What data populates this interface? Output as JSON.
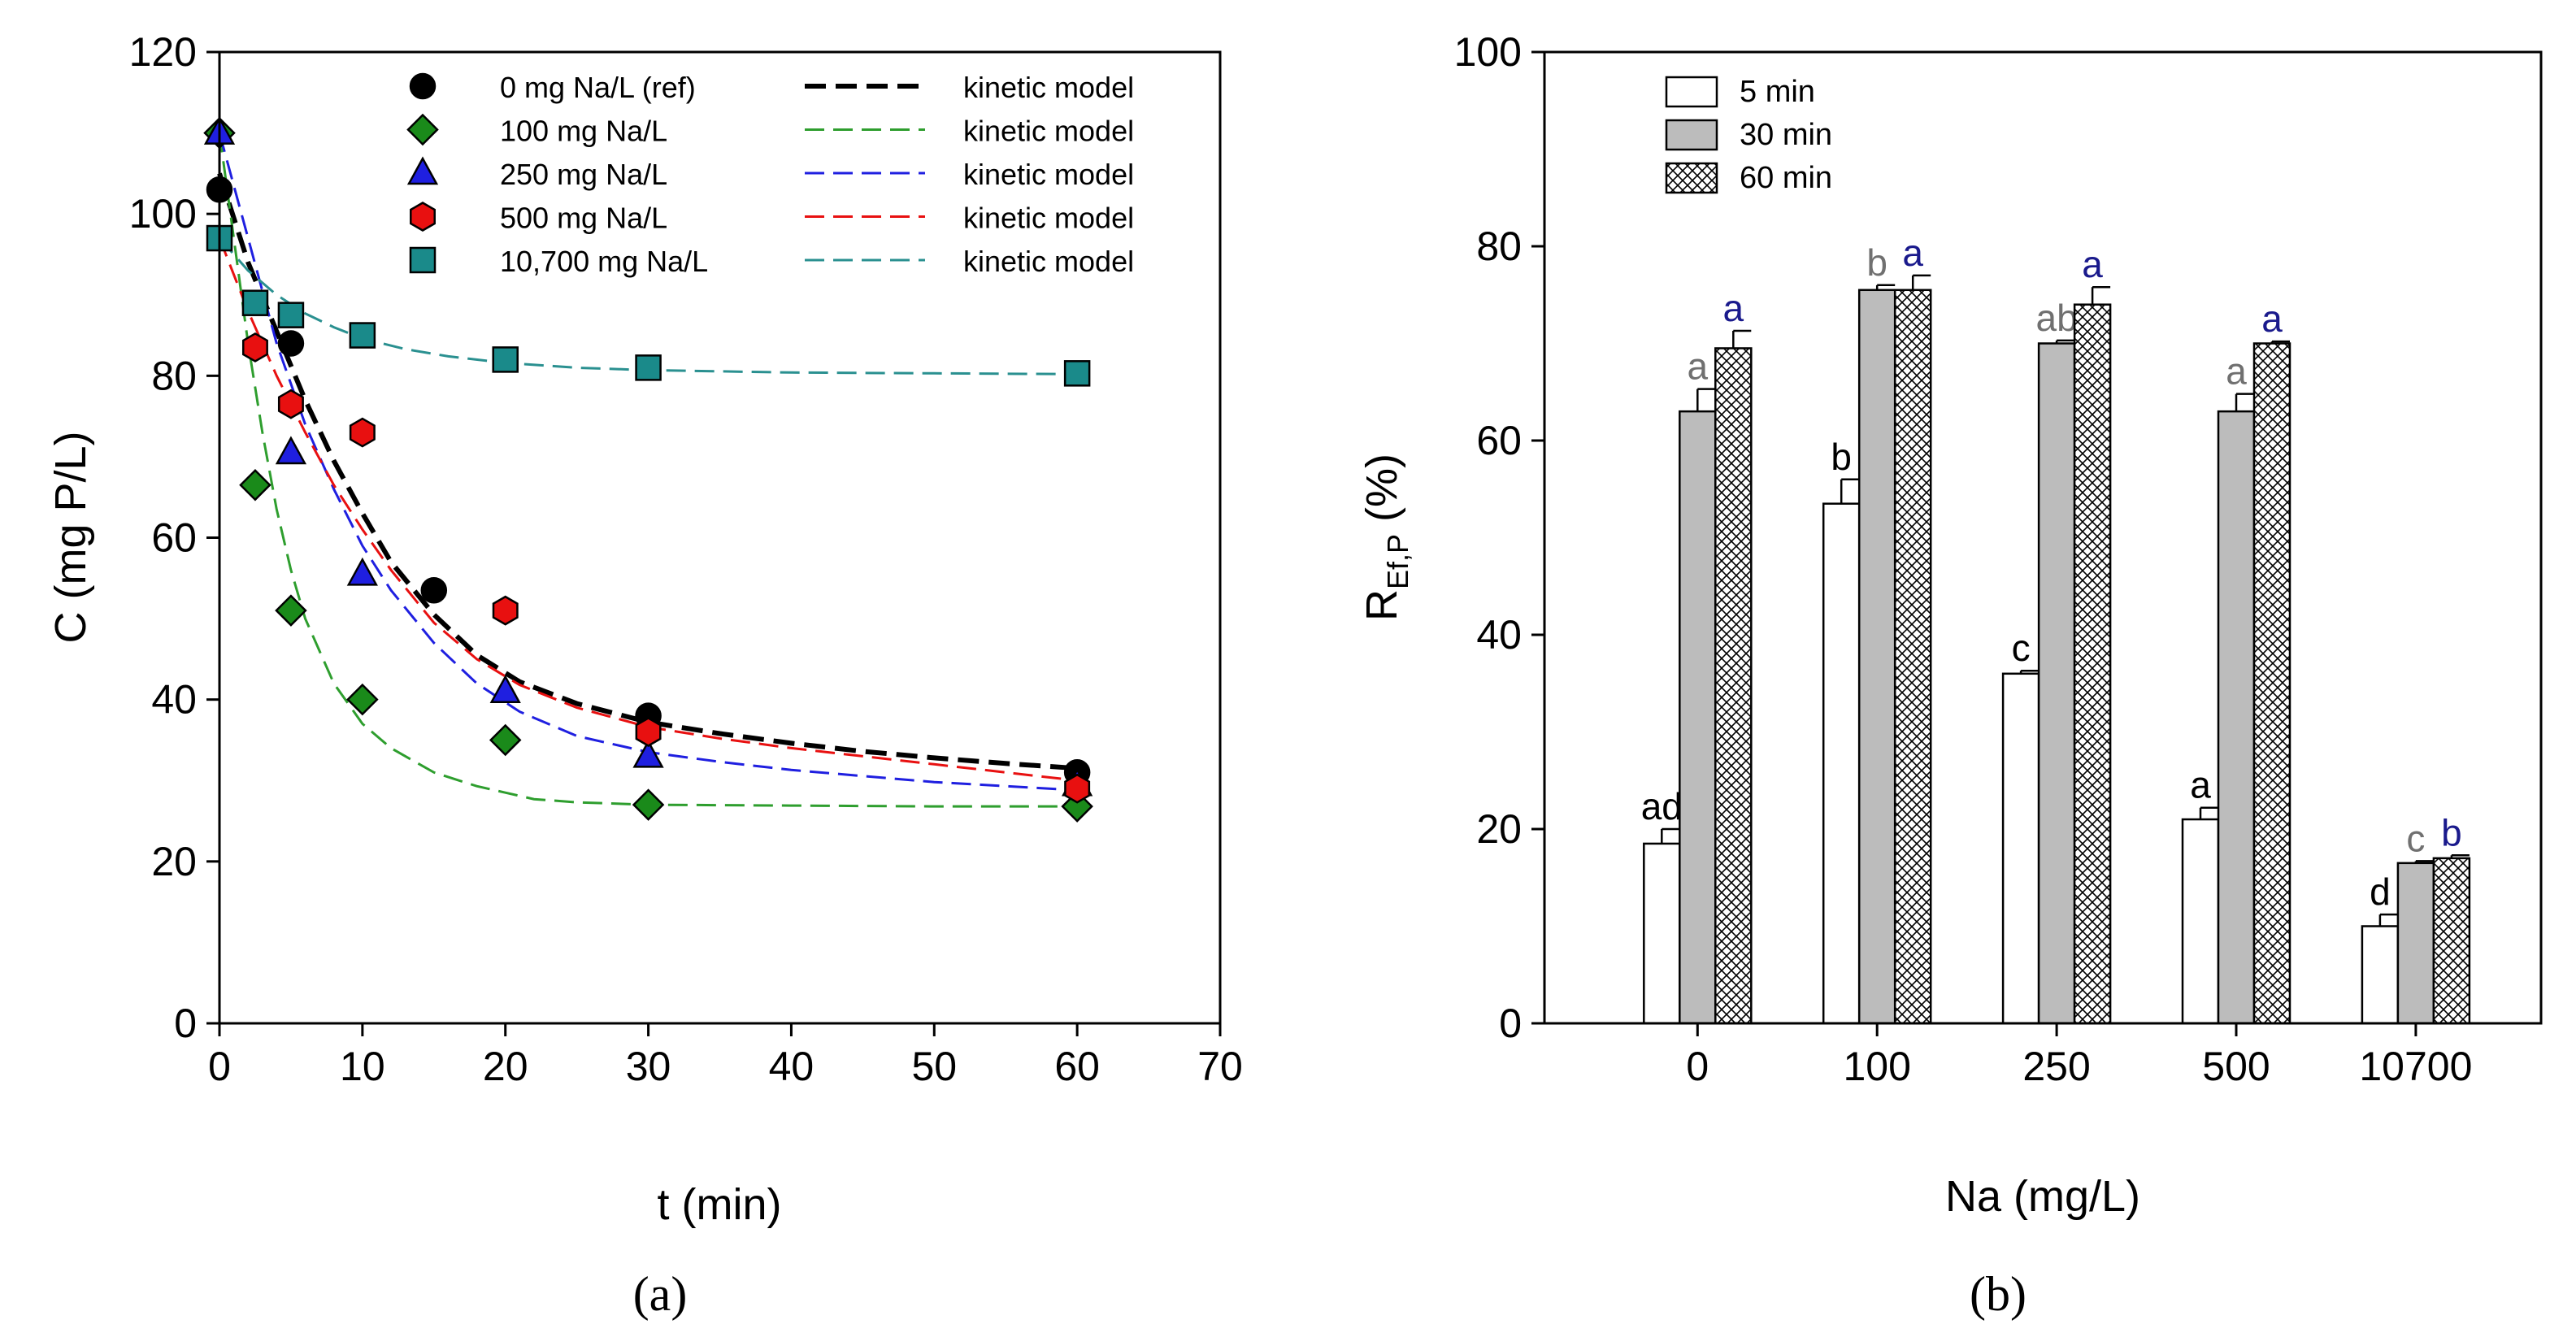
{
  "chart_data": [
    {
      "panel_label": "(a)",
      "type": "scatter",
      "xlabel": "t (min)",
      "ylabel": "C (mg P/L)",
      "xlim": [
        0,
        70
      ],
      "ylim": [
        0,
        120
      ],
      "xticks": [
        0,
        10,
        20,
        30,
        40,
        50,
        60,
        70
      ],
      "yticks": [
        0,
        20,
        40,
        60,
        80,
        100,
        120
      ],
      "grid": false,
      "legend_position": "top-right",
      "series": [
        {
          "name": "0 mg Na/L (ref)",
          "marker": "circle",
          "color": "#000000",
          "x": [
            0,
            5,
            15,
            30,
            60
          ],
          "y": [
            103,
            84,
            53.5,
            38,
            31
          ],
          "model_name": "kinetic model",
          "model_color": "#000000",
          "model_x": [
            0,
            2,
            4,
            6,
            8,
            10,
            12,
            15,
            18,
            21,
            25,
            30,
            35,
            40,
            45,
            50,
            55,
            60
          ],
          "model_y": [
            105,
            94,
            85.5,
            77,
            69.5,
            63,
            57,
            50.5,
            45.5,
            42.2,
            39.5,
            37.2,
            35.8,
            34.6,
            33.6,
            32.8,
            32.1,
            31.5
          ]
        },
        {
          "name": "100 mg Na/L",
          "marker": "diamond",
          "color": "#1a8a1a",
          "x": [
            0,
            2.5,
            5,
            10,
            20,
            30,
            60
          ],
          "y": [
            110,
            66.5,
            51,
            40,
            35,
            27,
            26.8
          ],
          "model_name": "kinetic model",
          "model_color": "#2e9e2e",
          "model_x": [
            0,
            1,
            2,
            3,
            4,
            5,
            6,
            8,
            10,
            12,
            15,
            18,
            20,
            22,
            25,
            30,
            40,
            50,
            60
          ],
          "model_y": [
            110,
            97,
            84,
            73,
            63.5,
            56,
            50,
            42,
            37,
            34,
            31,
            29.3,
            28.5,
            27.7,
            27.3,
            27,
            26.9,
            26.8,
            26.8
          ]
        },
        {
          "name": "250 mg Na/L",
          "marker": "triangle",
          "color": "#1f1fe0",
          "x": [
            0,
            5,
            10,
            20,
            30,
            60
          ],
          "y": [
            110,
            70.5,
            55.5,
            41,
            33,
            29.5
          ],
          "model_name": "kinetic model",
          "model_color": "#1f1fe0",
          "model_x": [
            0,
            2,
            4,
            6,
            8,
            10,
            12,
            15,
            18,
            21,
            25,
            30,
            35,
            40,
            50,
            60
          ],
          "model_y": [
            110,
            97,
            84,
            74,
            66,
            59,
            53.5,
            47,
            42,
            38.5,
            35.5,
            33.5,
            32.3,
            31.3,
            29.8,
            28.8
          ]
        },
        {
          "name": "500 mg Na/L",
          "marker": "hexagon",
          "color": "#e81010",
          "x": [
            2.5,
            5,
            10,
            20,
            30,
            60
          ],
          "y": [
            83.5,
            76.5,
            73,
            51,
            36,
            29
          ],
          "model_name": "kinetic model",
          "model_color": "#e81010",
          "model_x": [
            0,
            2,
            4,
            6,
            8,
            10,
            12,
            15,
            18,
            21,
            25,
            30,
            35,
            40,
            45,
            50,
            55,
            60
          ],
          "model_y": [
            97,
            88,
            80,
            73,
            66.5,
            61,
            56,
            49.5,
            45,
            41.8,
            39,
            36.6,
            35.2,
            34,
            33,
            32,
            31,
            30
          ]
        },
        {
          "name": "10,700 mg Na/L",
          "marker": "square",
          "color": "#1a8a8a",
          "x": [
            0,
            2.5,
            5,
            10,
            20,
            30,
            60
          ],
          "y": [
            97,
            89,
            87.5,
            85,
            82,
            81,
            80.3
          ],
          "model_name": "kinetic model",
          "model_color": "#2a9090",
          "model_x": [
            0,
            2,
            4,
            6,
            8,
            10,
            13,
            16,
            20,
            25,
            30,
            40,
            50,
            60
          ],
          "model_y": [
            97,
            93,
            90,
            87.7,
            86,
            84.6,
            83.3,
            82.4,
            81.6,
            81,
            80.7,
            80.4,
            80.3,
            80.2
          ]
        }
      ]
    },
    {
      "panel_label": "(b)",
      "type": "bar",
      "xlabel": "Na (mg/L)",
      "ylabel_main": "R",
      "ylabel_sub": "Ef,P",
      "ylabel_suffix": " (%)",
      "ylim": [
        0,
        100
      ],
      "yticks": [
        0,
        20,
        40,
        60,
        80,
        100
      ],
      "grid": false,
      "legend_position": "top-left",
      "categories": [
        "0",
        "100",
        "250",
        "500",
        "10700"
      ],
      "series": [
        {
          "name": "5 min",
          "fill": "white",
          "values": [
            18.5,
            53.5,
            36,
            21,
            10
          ],
          "errors": [
            1.5,
            2.5,
            0.3,
            1.2,
            1.2
          ],
          "letters": [
            "ad",
            "b",
            "c",
            "a",
            "d"
          ],
          "letter_color": "#000000"
        },
        {
          "name": "30 min",
          "fill": "gray",
          "values": [
            63,
            75.5,
            70,
            63,
            16.5
          ],
          "errors": [
            2.3,
            0.5,
            0.3,
            1.8,
            0.2
          ],
          "letters": [
            "a",
            "b",
            "ab",
            "a",
            "c"
          ],
          "letter_color": "#707070"
        },
        {
          "name": "60 min",
          "fill": "crosshatch",
          "values": [
            69.5,
            75.5,
            74,
            70,
            17
          ],
          "errors": [
            1.8,
            1.5,
            1.8,
            0.2,
            0.3
          ],
          "letters": [
            "a",
            "a",
            "a",
            "a",
            "b"
          ],
          "letter_color": "#1a1a8c"
        }
      ]
    }
  ]
}
